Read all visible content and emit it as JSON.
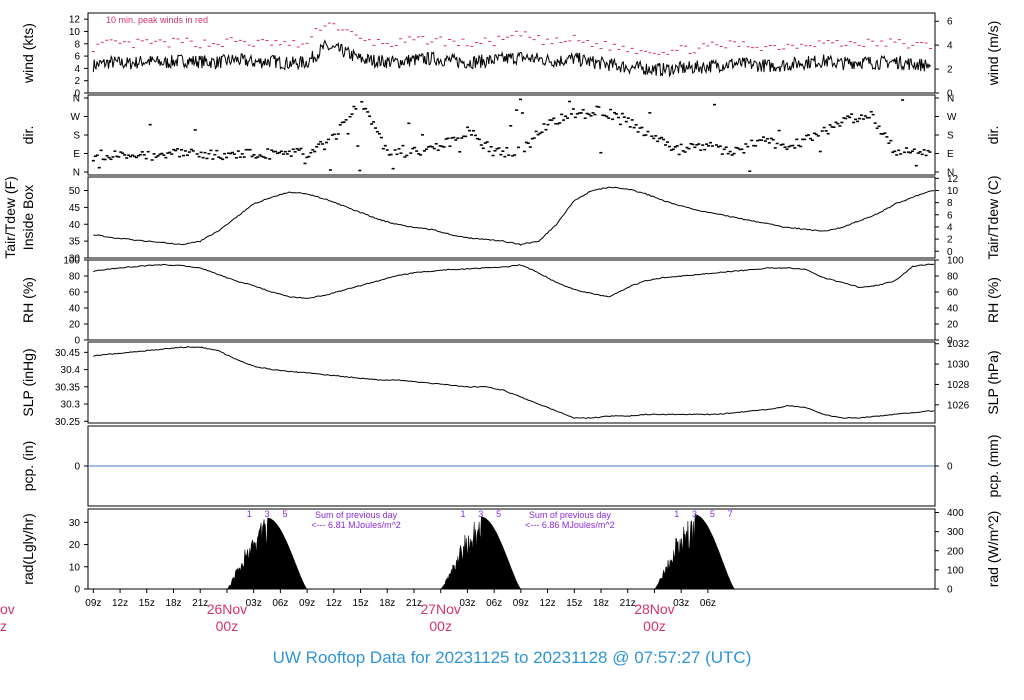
{
  "title": "UW Rooftop Data for 20231125  to  20231128 @ 07:57:27  (UTC)",
  "colors": {
    "date_label": "#d6336b",
    "peak_winds": "#d6336b",
    "annotation": "#8a2be2",
    "precip_line": "#4a78c8",
    "title": "#2f95d8",
    "trace": "#000000"
  },
  "chart_data": [
    {
      "id": "wind",
      "type": "line",
      "ylabel_left": "wind (kts)",
      "ylabel_right": "wind (m/s)",
      "yticks_left": [
        0,
        2,
        4,
        6,
        8,
        10,
        12
      ],
      "yticks_right": [
        0,
        2,
        4,
        6
      ],
      "ylim": [
        0,
        13
      ],
      "annotation": "10 min. peak winds in red",
      "series": [
        {
          "name": "",
          "x": [
            0,
            2,
            4,
            6,
            8,
            10,
            12,
            14,
            16,
            18,
            20,
            22,
            24,
            26,
            28,
            30,
            32,
            34,
            36,
            38,
            40,
            42,
            44,
            46,
            48,
            50,
            52,
            54,
            56,
            58,
            60,
            62,
            64,
            66,
            68,
            70,
            72,
            74,
            76,
            78,
            80,
            82,
            84,
            86,
            88,
            90,
            92,
            94
          ],
          "y": [
            4.5,
            5,
            4.8,
            5.2,
            4.9,
            5.3,
            5.1,
            5,
            5.4,
            5,
            5.2,
            4.8,
            5,
            7.5,
            6.8,
            5.5,
            5.2,
            5,
            5.4,
            5.6,
            5.3,
            5,
            5.2,
            5.5,
            5.8,
            5.5,
            5.2,
            5.6,
            5,
            4.6,
            4.2,
            4,
            3.8,
            4,
            4.2,
            4.5,
            4.8,
            4.6,
            4.4,
            4.6,
            5,
            5.2,
            4.8,
            5.1,
            4.9,
            5.1,
            4.7,
            4.5
          ]
        },
        {
          "name": "10 min. peak",
          "x": [
            0,
            2,
            4,
            6,
            8,
            10,
            12,
            14,
            16,
            18,
            20,
            22,
            24,
            26,
            28,
            30,
            32,
            34,
            36,
            38,
            40,
            42,
            44,
            46,
            48,
            50,
            52,
            54,
            56,
            58,
            60,
            62,
            64,
            66,
            68,
            70,
            72,
            74,
            76,
            78,
            80,
            82,
            84,
            86,
            88,
            90,
            92,
            94
          ],
          "y": [
            7.5,
            8,
            7.8,
            8.2,
            8,
            8.3,
            8.1,
            8,
            8.5,
            8,
            8.2,
            7.8,
            8,
            11.5,
            10.5,
            8.5,
            8.2,
            8,
            8.5,
            8.7,
            8.3,
            8,
            8.2,
            8.6,
            9.5,
            8.6,
            8.2,
            8.7,
            8,
            7.6,
            7.2,
            7,
            6.8,
            7,
            7.3,
            7.6,
            7.9,
            7.7,
            7.5,
            7.7,
            8.1,
            8.3,
            7.9,
            8.2,
            8,
            8.2,
            7.8,
            7.6
          ]
        }
      ]
    },
    {
      "id": "dir",
      "type": "scatter",
      "ylabel_left": "dir.",
      "ylabel_right": "dir.",
      "yticks_left": [
        "N",
        "E",
        "S",
        "W",
        "N"
      ],
      "yticks_right": [
        "N",
        "E",
        "S",
        "W",
        "N"
      ],
      "ylim": [
        0,
        360
      ],
      "series": [
        {
          "name": "",
          "x": [
            0,
            3,
            6,
            9,
            12,
            15,
            18,
            21,
            24,
            27,
            30,
            33,
            36,
            39,
            42,
            45,
            48,
            51,
            54,
            57,
            60,
            63,
            66,
            69,
            72,
            75,
            78,
            81,
            84,
            87,
            90,
            93
          ],
          "y": [
            80,
            85,
            82,
            88,
            90,
            85,
            90,
            95,
            88,
            160,
            350,
            100,
            95,
            120,
            200,
            95,
            100,
            230,
            290,
            300,
            250,
            160,
            110,
            120,
            100,
            150,
            120,
            180,
            240,
            290,
            100,
            90
          ]
        }
      ]
    },
    {
      "id": "temp",
      "type": "line",
      "ylabel_left": "Inside Box",
      "ylabel_left2": "Tair/Tdew (F)",
      "ylabel_right": "Tair/Tdew (C)",
      "yticks_left": [
        30,
        35,
        40,
        45,
        50
      ],
      "yticks_right": [
        0,
        2,
        4,
        6,
        8,
        10,
        12
      ],
      "ylim": [
        30,
        54
      ],
      "series": [
        {
          "name": "",
          "x": [
            0,
            2,
            4,
            6,
            8,
            10,
            12,
            14,
            16,
            18,
            20,
            22,
            24,
            26,
            28,
            30,
            32,
            34,
            36,
            38,
            40,
            42,
            44,
            46,
            48,
            50,
            52,
            54,
            56,
            58,
            60,
            62,
            64,
            66,
            68,
            70,
            72,
            74,
            76,
            78,
            80,
            82,
            84,
            86,
            88,
            90,
            92,
            94
          ],
          "y": [
            37,
            36,
            35.5,
            35,
            34.5,
            34,
            35,
            38,
            42,
            46,
            48,
            49.5,
            49,
            47.5,
            45.5,
            43.5,
            41.5,
            40,
            39,
            38.5,
            37,
            36,
            35.5,
            35,
            34,
            35,
            40,
            47,
            50,
            51,
            50.5,
            49,
            47,
            45.5,
            44,
            43,
            42,
            41,
            40,
            39,
            38.5,
            38,
            39,
            41,
            43,
            46,
            48,
            50
          ]
        }
      ]
    },
    {
      "id": "rh",
      "type": "line",
      "ylabel_left": "RH (%)",
      "ylabel_right": "RH (%)",
      "yticks_left": [
        0,
        20,
        40,
        60,
        80,
        100
      ],
      "yticks_right": [
        0,
        20,
        40,
        60,
        80,
        100
      ],
      "ylim": [
        0,
        100
      ],
      "series": [
        {
          "name": "",
          "x": [
            0,
            2,
            4,
            6,
            8,
            10,
            12,
            14,
            16,
            18,
            20,
            22,
            24,
            26,
            28,
            30,
            32,
            34,
            36,
            38,
            40,
            42,
            44,
            46,
            48,
            50,
            52,
            54,
            56,
            58,
            60,
            62,
            64,
            66,
            68,
            70,
            72,
            74,
            76,
            78,
            80,
            82,
            84,
            86,
            88,
            90,
            92,
            94
          ],
          "y": [
            86,
            89,
            91,
            93,
            94,
            93,
            90,
            82,
            74,
            68,
            60,
            54,
            52,
            56,
            62,
            68,
            74,
            80,
            84,
            86,
            88,
            89,
            90,
            91,
            94,
            84,
            72,
            63,
            58,
            54,
            66,
            74,
            78,
            80,
            82,
            84,
            86,
            88,
            90,
            90,
            88,
            78,
            72,
            66,
            68,
            74,
            92,
            95
          ]
        }
      ]
    },
    {
      "id": "slp",
      "type": "line",
      "ylabel_left": "SLP (inHg)",
      "ylabel_right": "SLP (hPa)",
      "yticks_left": [
        30.25,
        30.3,
        30.35,
        30.4,
        30.45
      ],
      "yticks_right": [
        1026,
        1028,
        1030,
        1032
      ],
      "ylim": [
        30.245,
        30.48
      ],
      "series": [
        {
          "name": "",
          "x": [
            0,
            2,
            4,
            6,
            8,
            10,
            12,
            14,
            16,
            18,
            20,
            22,
            24,
            26,
            28,
            30,
            32,
            34,
            36,
            38,
            40,
            42,
            44,
            46,
            48,
            50,
            52,
            54,
            56,
            58,
            60,
            62,
            64,
            66,
            68,
            70,
            72,
            74,
            76,
            78,
            80,
            82,
            84,
            86,
            88,
            90,
            92,
            94
          ],
          "y": [
            30.44,
            30.445,
            30.45,
            30.455,
            30.46,
            30.465,
            30.465,
            30.455,
            30.43,
            30.41,
            30.4,
            30.395,
            30.39,
            30.385,
            30.38,
            30.375,
            30.37,
            30.37,
            30.365,
            30.36,
            30.355,
            30.35,
            30.35,
            30.34,
            30.32,
            30.3,
            30.28,
            30.26,
            30.26,
            30.265,
            30.265,
            30.27,
            30.27,
            30.27,
            30.27,
            30.27,
            30.275,
            30.28,
            30.285,
            30.295,
            30.29,
            30.27,
            30.26,
            30.26,
            30.265,
            30.27,
            30.275,
            30.28
          ]
        }
      ]
    },
    {
      "id": "pcp",
      "type": "line",
      "ylabel_left": "pcp. (in)",
      "ylabel_right": "pcp. (mm)",
      "yticks_left": [
        0
      ],
      "yticks_right": [
        0
      ],
      "ylim": [
        -1,
        1
      ],
      "series": [
        {
          "name": "",
          "x": [
            0,
            94.5
          ],
          "y": [
            0,
            0
          ]
        }
      ]
    },
    {
      "id": "rad",
      "type": "area",
      "ylabel_left": "rad(Lgly/hr)",
      "ylabel_right": "rad (W/m^2)",
      "yticks_left": [
        0,
        10,
        20,
        30
      ],
      "yticks_right": [
        0,
        100,
        200,
        300,
        400
      ],
      "ylim": [
        0,
        36
      ],
      "annotations": [
        "Sum of previous day",
        "<--- 6.81 MJoules/m^2",
        "Sum of previous day",
        "<--- 6.86 MJoules/m^2"
      ],
      "hour_marks": [
        "1",
        "3",
        "5",
        "1",
        "3",
        "5",
        "1",
        "3",
        "5",
        "7"
      ],
      "series": [
        {
          "name": "",
          "days": [
            {
              "start": 15,
              "end": 24,
              "peak": 32
            },
            {
              "start": 39,
              "end": 48,
              "peak": 32.5
            },
            {
              "start": 63,
              "end": 72,
              "peak": 33.5
            }
          ]
        }
      ]
    }
  ],
  "x_axis": {
    "tick_labels": [
      "09z",
      "12z",
      "15z",
      "18z",
      "21z",
      "03z",
      "06z",
      "09z",
      "12z",
      "15z",
      "18z",
      "21z",
      "03z",
      "06z",
      "09z",
      "12z",
      "15z",
      "18z",
      "21z",
      "03z",
      "06z"
    ],
    "day_labels": [
      {
        "date": "26Nov",
        "time": "00z"
      },
      {
        "date": "27Nov",
        "time": "00z"
      },
      {
        "date": "28Nov",
        "time": "00z"
      }
    ],
    "cut_label": {
      "date": "ov",
      "time": "z"
    }
  }
}
